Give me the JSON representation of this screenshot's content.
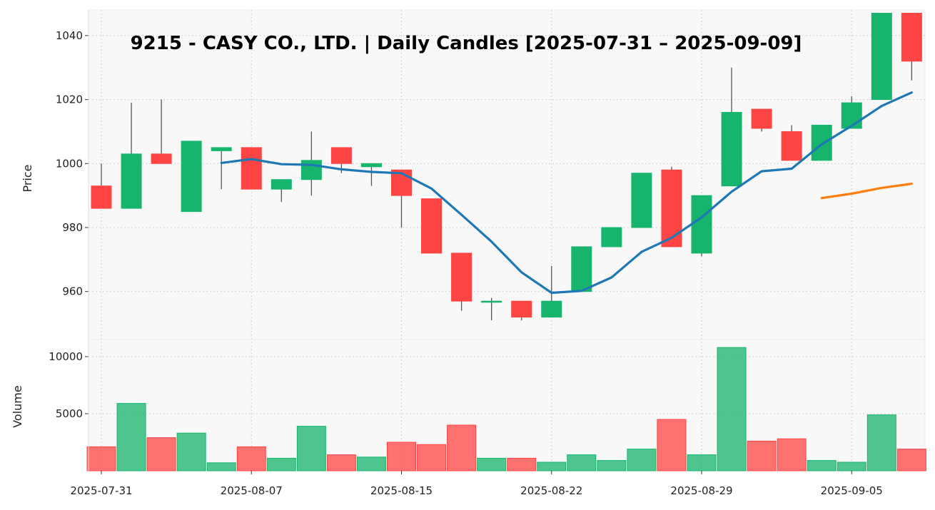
{
  "chart_data": {
    "type": "candlestick",
    "title": "9215 - CASY CO., LTD. | Daily Candles [2025-07-31 – 2025-09-09]",
    "price_panel": {
      "ylabel": "Price",
      "ylim": [
        945,
        1048
      ],
      "yticks": [
        960,
        980,
        1000,
        1020,
        1040
      ]
    },
    "volume_panel": {
      "ylabel": "Volume",
      "ylim": [
        0,
        11500
      ],
      "yticks": [
        5000,
        10000
      ]
    },
    "x_tick_labels": [
      "2025-07-31",
      "2025-08-07",
      "2025-08-15",
      "2025-08-22",
      "2025-08-29",
      "2025-09-05"
    ],
    "x_tick_indices": [
      0,
      5,
      10,
      15,
      20,
      25
    ],
    "colors": {
      "up": "#16b46c",
      "down": "#ff4444",
      "ma_short": "#1f77b4",
      "ma_long": "#ff7f0e"
    },
    "candles": [
      {
        "date": "2025-07-31",
        "open": 993,
        "high": 1000,
        "low": 986,
        "close": 986,
        "volume": 2100
      },
      {
        "date": "2025-08-01",
        "open": 986,
        "high": 1019,
        "low": 986,
        "close": 1003,
        "volume": 5900
      },
      {
        "date": "2025-08-04",
        "open": 1003,
        "high": 1020,
        "low": 1000,
        "close": 1000,
        "volume": 2900
      },
      {
        "date": "2025-08-05",
        "open": 985,
        "high": 1007,
        "low": 985,
        "close": 1007,
        "volume": 3300
      },
      {
        "date": "2025-08-06",
        "open": 1004,
        "high": 1005,
        "low": 992,
        "close": 1005,
        "volume": 700
      },
      {
        "date": "2025-08-07",
        "open": 1005,
        "high": 1005,
        "low": 992,
        "close": 992,
        "volume": 2100
      },
      {
        "date": "2025-08-08",
        "open": 992,
        "high": 995,
        "low": 988,
        "close": 995,
        "volume": 1100
      },
      {
        "date": "2025-08-12",
        "open": 995,
        "high": 1010,
        "low": 990,
        "close": 1001,
        "volume": 3900
      },
      {
        "date": "2025-08-13",
        "open": 1005,
        "high": 1005,
        "low": 997,
        "close": 1000,
        "volume": 1400
      },
      {
        "date": "2025-08-14",
        "open": 999,
        "high": 1000,
        "low": 993,
        "close": 1000,
        "volume": 1200
      },
      {
        "date": "2025-08-15",
        "open": 998,
        "high": 998,
        "low": 980,
        "close": 990,
        "volume": 2500
      },
      {
        "date": "2025-08-18",
        "open": 989,
        "high": 989,
        "low": 972,
        "close": 972,
        "volume": 2300
      },
      {
        "date": "2025-08-19",
        "open": 972,
        "high": 972,
        "low": 954,
        "close": 957,
        "volume": 4000
      },
      {
        "date": "2025-08-20",
        "open": 957,
        "high": 958,
        "low": 951,
        "close": 957,
        "volume": 1100
      },
      {
        "date": "2025-08-21",
        "open": 957,
        "high": 957,
        "low": 951,
        "close": 952,
        "volume": 1100
      },
      {
        "date": "2025-08-22",
        "open": 952,
        "high": 968,
        "low": 952,
        "close": 957,
        "volume": 750
      },
      {
        "date": "2025-08-25",
        "open": 960,
        "high": 974,
        "low": 960,
        "close": 974,
        "volume": 1400
      },
      {
        "date": "2025-08-26",
        "open": 974,
        "high": 980,
        "low": 974,
        "close": 980,
        "volume": 900
      },
      {
        "date": "2025-08-27",
        "open": 980,
        "high": 997,
        "low": 980,
        "close": 997,
        "volume": 1900
      },
      {
        "date": "2025-08-28",
        "open": 998,
        "high": 999,
        "low": 974,
        "close": 974,
        "volume": 4500
      },
      {
        "date": "2025-08-29",
        "open": 972,
        "high": 990,
        "low": 971,
        "close": 990,
        "volume": 1400
      },
      {
        "date": "2025-09-01",
        "open": 993,
        "high": 1030,
        "low": 993,
        "close": 1016,
        "volume": 10800
      },
      {
        "date": "2025-09-02",
        "open": 1017,
        "high": 1017,
        "low": 1010,
        "close": 1011,
        "volume": 2600
      },
      {
        "date": "2025-09-03",
        "open": 1010,
        "high": 1012,
        "low": 1001,
        "close": 1001,
        "volume": 2800
      },
      {
        "date": "2025-09-04",
        "open": 1001,
        "high": 1012,
        "low": 1001,
        "close": 1012,
        "volume": 900
      },
      {
        "date": "2025-09-05",
        "open": 1011,
        "high": 1021,
        "low": 1011,
        "close": 1019,
        "volume": 750
      },
      {
        "date": "2025-09-08",
        "open": 1020,
        "high": 1047,
        "low": 1020,
        "close": 1047,
        "volume": 4900
      },
      {
        "date": "2025-09-09",
        "open": 1047,
        "high": 1047,
        "low": 1026,
        "close": 1032,
        "volume": 1900
      }
    ],
    "ma_short": {
      "start_index": 4,
      "values": [
        1000.2,
        1001.4,
        999.8,
        999.6,
        998.2,
        997.4,
        997.0,
        992.2,
        984.0,
        975.6,
        966.0,
        959.6,
        960.2,
        964.4,
        972.4,
        976.8,
        983.2,
        991.2,
        997.6,
        998.4,
        1006.0,
        1011.8,
        1018.0,
        1022.2
      ]
    },
    "ma_long": {
      "start_index": 24,
      "values": [
        989.2,
        990.6,
        992.4,
        993.7
      ]
    }
  }
}
